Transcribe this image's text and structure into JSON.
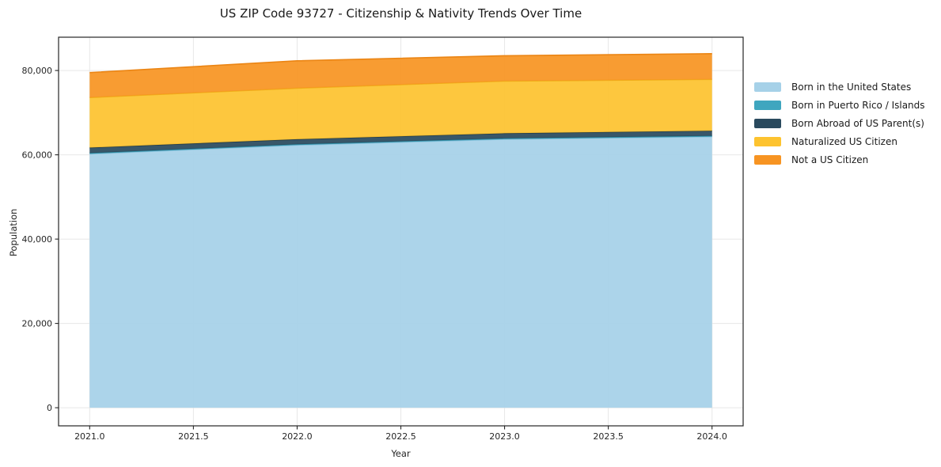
{
  "chart_data": {
    "type": "area",
    "stacked": true,
    "title": "US ZIP Code 93727 - Citizenship & Nativity Trends Over Time",
    "xlabel": "Year",
    "ylabel": "Population",
    "x": [
      2021,
      2022,
      2023,
      2024
    ],
    "series": [
      {
        "name": "Born in the United States",
        "color": "#a6d1e8",
        "edge_color": "#8ec3de",
        "values": [
          60200,
          62300,
          63700,
          64300
        ]
      },
      {
        "name": "Born in Puerto Rico / Islands",
        "color": "#3fa6bf",
        "edge_color": "#338fa6",
        "values": [
          200,
          200,
          200,
          200
        ]
      },
      {
        "name": "Born Abroad of US Parent(s)",
        "color": "#2a4a5e",
        "edge_color": "#213b4b",
        "values": [
          1300,
          1200,
          1200,
          1200
        ]
      },
      {
        "name": "Naturalized US Citizen",
        "color": "#fdc32f",
        "edge_color": "#efaf19",
        "values": [
          11900,
          12100,
          12400,
          12200
        ]
      },
      {
        "name": "Not a US Citizen",
        "color": "#f79422",
        "edge_color": "#eb8514",
        "values": [
          5900,
          6500,
          6000,
          6100
        ]
      }
    ],
    "xlim": [
      2020.85,
      2024.15
    ],
    "ylim": [
      -4300,
      87900
    ],
    "x_ticks": [
      {
        "value": 2021.0,
        "label": "2021.0"
      },
      {
        "value": 2021.5,
        "label": "2021.5"
      },
      {
        "value": 2022.0,
        "label": "2022.0"
      },
      {
        "value": 2022.5,
        "label": "2022.5"
      },
      {
        "value": 2023.0,
        "label": "2023.0"
      },
      {
        "value": 2023.5,
        "label": "2023.5"
      },
      {
        "value": 2024.0,
        "label": "2024.0"
      }
    ],
    "y_ticks": [
      {
        "value": 0,
        "label": "0"
      },
      {
        "value": 20000,
        "label": "20,000"
      },
      {
        "value": 40000,
        "label": "40,000"
      },
      {
        "value": 60000,
        "label": "60,000"
      },
      {
        "value": 80000,
        "label": "80,000"
      }
    ],
    "grid": true,
    "legend_position": "right-outside"
  },
  "style": {
    "grid_color": "#e7e7e7",
    "spine_color": "#262626",
    "tick_text_color": "#262626",
    "fill_opacity": 0.93
  }
}
